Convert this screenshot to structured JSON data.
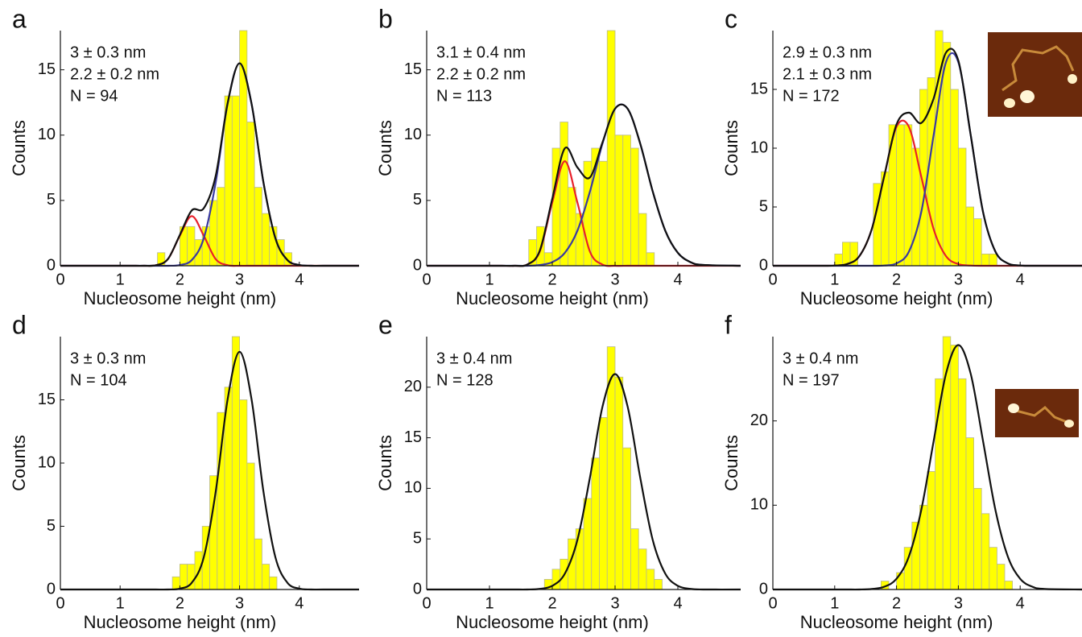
{
  "chart_data": [
    {
      "type": "histogram",
      "panel": "a",
      "annotations": [
        "3 ± 0.3 nm",
        "2.2 ± 0.2 nm",
        "N = 94"
      ],
      "xlabel": "Nucleosome height (nm)",
      "ylabel": "Counts",
      "color": "#ffff00",
      "bins": [
        1.625,
        1.75,
        1.875,
        2.0,
        2.125,
        2.25,
        2.375,
        2.5,
        2.625,
        2.75,
        2.875,
        3.0,
        3.125,
        3.25,
        3.375,
        3.5,
        3.625,
        3.75,
        3.875
      ],
      "counts": [
        1,
        0,
        0,
        3,
        3,
        2,
        3,
        5,
        6,
        13,
        13,
        18,
        11,
        6,
        4,
        3,
        2,
        1
      ],
      "fit_x": [
        0,
        0.8,
        1.0,
        1.2,
        1.4,
        1.6,
        1.8,
        2.0,
        2.2,
        2.4,
        2.6,
        2.8,
        3.0,
        3.2,
        3.4,
        3.6,
        3.8,
        4.0,
        4.2,
        4.4,
        5.0
      ],
      "fits": [
        {
          "color": "#e8202a",
          "values": [
            0,
            0,
            0,
            0,
            0,
            0.04,
            0.51,
            2.3,
            3.8,
            2.3,
            0.51,
            0.04,
            0,
            0,
            0,
            0,
            0,
            0,
            0,
            0,
            0
          ]
        },
        {
          "color": "#3a3aa0",
          "values": [
            0,
            0,
            0,
            0,
            0,
            0,
            0,
            0.06,
            0.44,
            2.1,
            6.37,
            12.41,
            15.5,
            12.41,
            6.37,
            2.1,
            0.44,
            0.06,
            0,
            0,
            0
          ]
        },
        {
          "color": "#111111",
          "values": [
            0,
            0,
            0,
            0,
            0,
            0.04,
            0.51,
            2.36,
            4.24,
            4.4,
            6.88,
            12.45,
            15.5,
            12.41,
            6.37,
            2.1,
            0.44,
            0.06,
            0,
            0,
            0
          ]
        }
      ],
      "xlim": [
        0,
        5
      ],
      "xticks": [
        0,
        1,
        2,
        3,
        4
      ],
      "ylim": [
        0,
        18
      ],
      "yticks": [
        0,
        5,
        10,
        15
      ]
    },
    {
      "type": "histogram",
      "panel": "b",
      "annotations": [
        "3.1 ± 0.4 nm",
        "2.2 ± 0.2 nm",
        "N = 113"
      ],
      "xlabel": "Nucleosome height (nm)",
      "ylabel": "Counts",
      "color": "#ffff00",
      "bins": [
        1.625,
        1.75,
        1.875,
        2.0,
        2.125,
        2.25,
        2.375,
        2.5,
        2.625,
        2.75,
        2.875,
        3.0,
        3.125,
        3.25,
        3.375,
        3.5,
        3.625,
        3.75,
        3.875
      ],
      "counts": [
        2,
        3,
        1,
        9,
        11,
        6,
        4,
        8,
        9,
        8,
        18,
        10,
        10,
        9,
        4,
        1,
        0,
        0
      ],
      "fit_x": [
        0,
        0.8,
        1.0,
        1.2,
        1.4,
        1.6,
        1.8,
        2.0,
        2.2,
        2.4,
        2.6,
        2.8,
        3.0,
        3.2,
        3.4,
        3.6,
        3.8,
        4.0,
        4.2,
        4.4,
        5.0
      ],
      "fits": [
        {
          "color": "#e8202a",
          "values": [
            0,
            0,
            0,
            0,
            0,
            0.09,
            1.08,
            4.85,
            8,
            4.85,
            1.08,
            0.09,
            0,
            0,
            0,
            0,
            0,
            0,
            0,
            0,
            0
          ]
        },
        {
          "color": "#3a3aa0",
          "values": [
            0,
            0,
            0,
            0,
            0,
            0,
            0.06,
            0.28,
            0.99,
            2.68,
            5.68,
            9.36,
            12.02,
            12.02,
            9.36,
            5.68,
            2.68,
            0.99,
            0.28,
            0.06,
            0
          ]
        },
        {
          "color": "#111111",
          "values": [
            0,
            0,
            0,
            0,
            0,
            0.09,
            1.14,
            5.13,
            8.99,
            7.53,
            6.76,
            9.45,
            12.02,
            12.02,
            9.36,
            5.68,
            2.68,
            0.99,
            0.28,
            0.06,
            0
          ]
        }
      ],
      "xlim": [
        0,
        5
      ],
      "xticks": [
        0,
        1,
        2,
        3,
        4
      ],
      "ylim": [
        0,
        18
      ],
      "yticks": [
        0,
        5,
        10,
        15
      ]
    },
    {
      "type": "histogram",
      "panel": "c",
      "annotations": [
        "2.9 ± 0.3 nm",
        "2.1 ± 0.3 nm",
        "N = 172"
      ],
      "xlabel": "Nucleosome height (nm)",
      "ylabel": "Counts",
      "color": "#ffff00",
      "bins": [
        1.0,
        1.125,
        1.25,
        1.375,
        1.5,
        1.625,
        1.75,
        1.875,
        2.0,
        2.125,
        2.25,
        2.375,
        2.5,
        2.625,
        2.75,
        2.875,
        3.0,
        3.125,
        3.25,
        3.375,
        3.5,
        3.625
      ],
      "counts": [
        1,
        2,
        2,
        0,
        0,
        7,
        8,
        12,
        12,
        12,
        10,
        15,
        16,
        20,
        19,
        15,
        10,
        5,
        4,
        1,
        1
      ],
      "fit_x": [
        0,
        0.8,
        1.0,
        1.2,
        1.4,
        1.6,
        1.8,
        2.0,
        2.2,
        2.4,
        2.6,
        2.8,
        3.0,
        3.2,
        3.4,
        3.6,
        3.8,
        4.0,
        4.2,
        4.4,
        5.0
      ],
      "fits": [
        {
          "color": "#e8202a",
          "values": [
            0,
            0,
            0.02,
            0.14,
            0.82,
            3.12,
            7.58,
            11.82,
            11.82,
            7.58,
            3.12,
            0.82,
            0.14,
            0.02,
            0,
            0,
            0,
            0,
            0,
            0,
            0
          ]
        },
        {
          "color": "#3a3aa0",
          "values": [
            0,
            0,
            0,
            0,
            0,
            0,
            0.02,
            0.2,
            1.2,
            4.56,
            11.1,
            17.31,
            17.31,
            11.1,
            4.56,
            1.2,
            0.2,
            0.02,
            0,
            0,
            0
          ]
        },
        {
          "color": "#111111",
          "values": [
            0,
            0,
            0.02,
            0.14,
            0.82,
            3.12,
            7.6,
            12.02,
            13.02,
            12.14,
            14.22,
            18.13,
            17.45,
            11.12,
            4.56,
            1.2,
            0.2,
            0.02,
            0,
            0,
            0
          ]
        }
      ],
      "xlim": [
        0,
        5
      ],
      "xticks": [
        0,
        1,
        2,
        3,
        4
      ],
      "ylim": [
        0,
        20
      ],
      "yticks": [
        0,
        5,
        10,
        15
      ]
    },
    {
      "type": "histogram",
      "panel": "d",
      "annotations": [
        "3 ± 0.3 nm",
        "N = 104"
      ],
      "xlabel": "Nucleosome height (nm)",
      "ylabel": "Counts",
      "color": "#ffff00",
      "bins": [
        1.875,
        2.0,
        2.125,
        2.25,
        2.375,
        2.5,
        2.625,
        2.75,
        2.875,
        3.0,
        3.125,
        3.25,
        3.375,
        3.5,
        3.625,
        3.75,
        3.875
      ],
      "counts": [
        1,
        2,
        2,
        3,
        5,
        9,
        14,
        16,
        20,
        15,
        10,
        4,
        2,
        1,
        0,
        0
      ],
      "fit_x": [
        0,
        0.8,
        1.0,
        1.2,
        1.4,
        1.6,
        1.8,
        2.0,
        2.2,
        2.4,
        2.6,
        2.8,
        3.0,
        3.2,
        3.4,
        3.6,
        3.8,
        4.0,
        4.2,
        4.4,
        5.0
      ],
      "fits": [
        {
          "color": "#111111",
          "values": [
            0,
            0,
            0,
            0,
            0,
            0,
            0,
            0.07,
            0.54,
            2.54,
            7.73,
            15.05,
            18.8,
            15.05,
            7.73,
            2.54,
            0.54,
            0.07,
            0,
            0,
            0
          ]
        }
      ],
      "xlim": [
        0,
        5
      ],
      "xticks": [
        0,
        1,
        2,
        3,
        4
      ],
      "ylim": [
        0,
        20
      ],
      "yticks": [
        0,
        5,
        10,
        15
      ]
    },
    {
      "type": "histogram",
      "panel": "e",
      "annotations": [
        "3 ± 0.4 nm",
        "N = 128"
      ],
      "xlabel": "Nucleosome height (nm)",
      "ylabel": "Counts",
      "color": "#ffff00",
      "bins": [
        1.875,
        2.0,
        2.125,
        2.25,
        2.375,
        2.5,
        2.625,
        2.75,
        2.875,
        3.0,
        3.125,
        3.25,
        3.375,
        3.5,
        3.625,
        3.75
      ],
      "counts": [
        1,
        2,
        3,
        5,
        6,
        9,
        13,
        17,
        24,
        21,
        14,
        6,
        4,
        2,
        1
      ],
      "fit_x": [
        0,
        0.8,
        1.0,
        1.2,
        1.4,
        1.6,
        1.8,
        2.0,
        2.2,
        2.4,
        2.6,
        2.8,
        3.0,
        3.2,
        3.4,
        3.6,
        3.8,
        4.0,
        4.2,
        4.4,
        5.0
      ],
      "fits": [
        {
          "color": "#111111",
          "values": [
            0,
            0,
            0,
            0,
            0,
            0,
            0.06,
            0.36,
            1.56,
            4.89,
            11.08,
            18.08,
            21.3,
            18.08,
            11.08,
            4.89,
            1.56,
            0.36,
            0.06,
            0,
            0
          ]
        }
      ],
      "xlim": [
        0,
        5
      ],
      "xticks": [
        0,
        1,
        2,
        3,
        4
      ],
      "ylim": [
        0,
        25
      ],
      "yticks": [
        0,
        5,
        10,
        15,
        20
      ]
    },
    {
      "type": "histogram",
      "panel": "f",
      "annotations": [
        "3 ± 0.4 nm",
        "N = 197"
      ],
      "xlabel": "Nucleosome height (nm)",
      "ylabel": "Counts",
      "color": "#ffff00",
      "bins": [
        1.75,
        1.875,
        2.0,
        2.125,
        2.25,
        2.375,
        2.5,
        2.625,
        2.75,
        2.875,
        3.0,
        3.125,
        3.25,
        3.375,
        3.5,
        3.625,
        3.75,
        3.875
      ],
      "counts": [
        1,
        0,
        2,
        5,
        8,
        10,
        14,
        25,
        30,
        29,
        25,
        18,
        12,
        9,
        5,
        3,
        1
      ],
      "fit_x": [
        0,
        0.8,
        1.0,
        1.2,
        1.4,
        1.6,
        1.8,
        2.0,
        2.2,
        2.4,
        2.6,
        2.8,
        3.0,
        3.2,
        3.4,
        3.6,
        3.8,
        4.0,
        4.2,
        4.4,
        5.0
      ],
      "fits": [
        {
          "color": "#111111",
          "values": [
            0,
            0,
            0,
            0,
            0,
            0.06,
            0.32,
            1.27,
            3.92,
            9.42,
            17.59,
            25.59,
            29,
            25.59,
            17.59,
            9.42,
            3.92,
            1.27,
            0.32,
            0.06,
            0
          ]
        }
      ],
      "xlim": [
        0,
        5
      ],
      "xticks": [
        0,
        1,
        2,
        3,
        4
      ],
      "ylim": [
        0,
        30
      ],
      "yticks": [
        0,
        10,
        20
      ]
    }
  ]
}
